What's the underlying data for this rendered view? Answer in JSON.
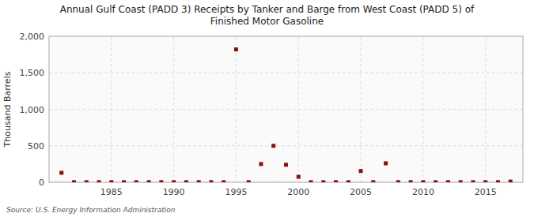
{
  "chart_data": {
    "type": "scatter",
    "title": "Annual Gulf Coast (PADD 3) Receipts by Tanker and Barge from West Coast (PADD 5) of\nFinished Motor Gasoline",
    "ylabel": "Thousand Barrels",
    "annotations": [
      "Source: U.S. Energy Information Administration"
    ],
    "x": [
      1981,
      1982,
      1983,
      1984,
      1985,
      1986,
      1987,
      1988,
      1989,
      1990,
      1991,
      1992,
      1993,
      1994,
      1995,
      1996,
      1997,
      1998,
      1999,
      2000,
      2001,
      2002,
      2003,
      2004,
      2005,
      2006,
      2007,
      2008,
      2009,
      2010,
      2011,
      2012,
      2013,
      2014,
      2015,
      2016,
      2017
    ],
    "values": [
      130,
      2,
      2,
      2,
      2,
      2,
      2,
      2,
      2,
      2,
      2,
      2,
      2,
      2,
      1820,
      2,
      250,
      500,
      240,
      75,
      2,
      2,
      2,
      2,
      155,
      2,
      260,
      2,
      2,
      2,
      2,
      2,
      2,
      2,
      2,
      2,
      10
    ],
    "color": "#8b1010",
    "marker": "square",
    "xlim": [
      1980,
      2018
    ],
    "xticks": [
      1985,
      1990,
      1995,
      2000,
      2005,
      2010,
      2015
    ],
    "ylim": [
      0,
      2000
    ],
    "yticks": [
      0,
      500,
      {
        "value": 1000,
        "label": "1,000"
      },
      {
        "value": 1500,
        "label": "1,500"
      },
      {
        "value": 2000,
        "label": "2,000"
      }
    ],
    "grid": true
  }
}
